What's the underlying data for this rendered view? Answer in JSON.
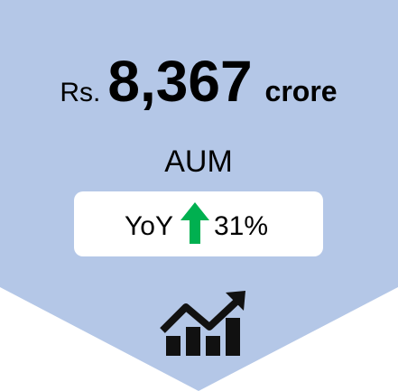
{
  "card": {
    "prefix": "Rs.",
    "value": "8,367",
    "unit": "crore",
    "label": "AUM",
    "change_label": "YoY",
    "change_value": "31%"
  }
}
